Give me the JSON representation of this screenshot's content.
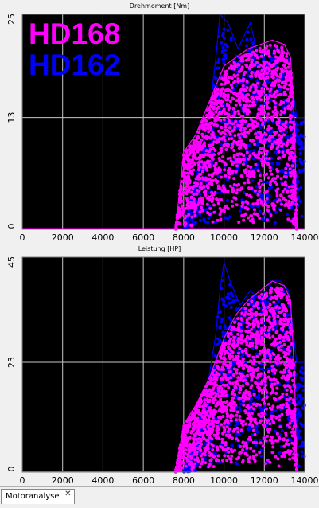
{
  "window": {
    "tab_label": "Motoranalyse"
  },
  "colors": {
    "plot_bg": "#000000",
    "grid": "#c8c8c8",
    "axis_text": "#000000",
    "hd168": "#ff00ff",
    "hd162": "#0000ff"
  },
  "chart_data": [
    {
      "type": "scatter",
      "title": "Drehmoment [Nm]",
      "xlim": [
        0,
        14000
      ],
      "ylim": [
        0,
        25
      ],
      "xticks": [
        0,
        2000,
        4000,
        6000,
        8000,
        10000,
        12000,
        14000
      ],
      "yticks": [
        0,
        13,
        25
      ],
      "grid": true,
      "legend_position": "top-left",
      "series": [
        {
          "name": "HD168",
          "color": "#ff00ff",
          "envelope": [
            [
              7600,
              0
            ],
            [
              8000,
              9
            ],
            [
              8600,
              11
            ],
            [
              9300,
              15
            ],
            [
              10000,
              19
            ],
            [
              10600,
              20
            ],
            [
              11200,
              21
            ],
            [
              11800,
              21.5
            ],
            [
              12400,
              22
            ],
            [
              13000,
              21.5
            ],
            [
              13300,
              20
            ],
            [
              13500,
              12
            ],
            [
              13600,
              0
            ]
          ]
        },
        {
          "name": "HD162",
          "color": "#0000ff",
          "envelope": [
            [
              8000,
              0
            ],
            [
              8500,
              5
            ],
            [
              9000,
              10
            ],
            [
              9300,
              14
            ],
            [
              9600,
              20
            ],
            [
              9800,
              25
            ],
            [
              10200,
              24
            ],
            [
              10700,
              21
            ],
            [
              11300,
              24
            ],
            [
              11700,
              20
            ],
            [
              12300,
              21
            ],
            [
              12800,
              21
            ],
            [
              13200,
              20
            ],
            [
              13600,
              13
            ],
            [
              14000,
              13
            ]
          ]
        }
      ]
    },
    {
      "type": "scatter",
      "title": "Leistung [HP]",
      "xlim": [
        0,
        14000
      ],
      "ylim": [
        0,
        45
      ],
      "xticks": [
        0,
        2000,
        4000,
        6000,
        8000,
        10000,
        12000,
        14000
      ],
      "yticks": [
        0,
        23,
        45
      ],
      "grid": true,
      "series": [
        {
          "name": "HD168",
          "color": "#ff00ff",
          "envelope": [
            [
              7600,
              0
            ],
            [
              8000,
              10
            ],
            [
              8600,
              14
            ],
            [
              9300,
              20
            ],
            [
              10000,
              28
            ],
            [
              10600,
              33
            ],
            [
              11200,
              36
            ],
            [
              11800,
              38
            ],
            [
              12400,
              40
            ],
            [
              13000,
              39
            ],
            [
              13300,
              36
            ],
            [
              13500,
              20
            ],
            [
              13600,
              0
            ]
          ]
        },
        {
          "name": "HD162",
          "color": "#0000ff",
          "envelope": [
            [
              8000,
              0
            ],
            [
              8500,
              6
            ],
            [
              9000,
              14
            ],
            [
              9300,
              21
            ],
            [
              9600,
              29
            ],
            [
              9800,
              38
            ],
            [
              10000,
              44
            ],
            [
              10300,
              40
            ],
            [
              10800,
              35
            ],
            [
              11300,
              38
            ],
            [
              11800,
              36
            ],
            [
              12300,
              40
            ],
            [
              12800,
              40
            ],
            [
              13200,
              38
            ],
            [
              13600,
              23
            ],
            [
              14000,
              23
            ]
          ]
        }
      ]
    }
  ]
}
